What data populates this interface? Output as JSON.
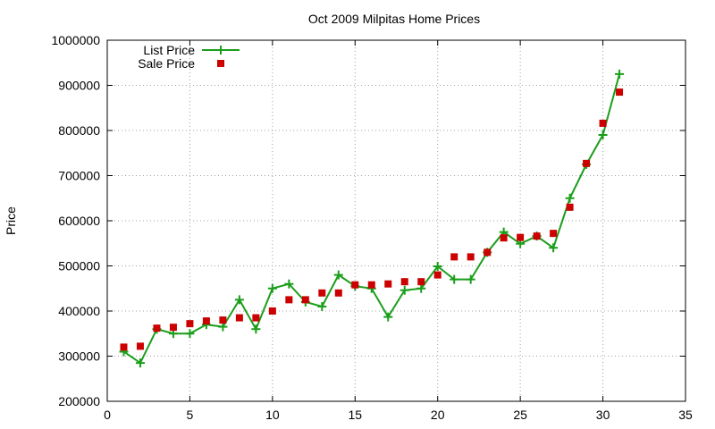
{
  "chart_data": {
    "type": "line",
    "title": "Oct 2009 Milpitas Home Prices",
    "xlabel": "",
    "ylabel": "Price",
    "xlim": [
      0,
      35
    ],
    "ylim": [
      200000,
      1000000
    ],
    "x_ticks": [
      0,
      5,
      10,
      15,
      20,
      25,
      30,
      35
    ],
    "y_ticks": [
      200000,
      300000,
      400000,
      500000,
      600000,
      700000,
      800000,
      900000,
      1000000
    ],
    "grid": true,
    "legend_position": "top-left",
    "series": [
      {
        "name": "List Price",
        "style": "line-with-plus-markers",
        "color": "#1a9e1a",
        "x": [
          1,
          2,
          3,
          4,
          5,
          6,
          7,
          8,
          9,
          10,
          11,
          12,
          13,
          14,
          15,
          16,
          17,
          18,
          19,
          20,
          21,
          22,
          23,
          24,
          25,
          26,
          27,
          28,
          29,
          30,
          31
        ],
        "values": [
          310000,
          285000,
          360000,
          350000,
          350000,
          370000,
          365000,
          425000,
          360000,
          450000,
          460000,
          420000,
          410000,
          480000,
          455000,
          450000,
          387000,
          446000,
          450000,
          499000,
          470000,
          470000,
          530000,
          575000,
          549000,
          566000,
          540000,
          650000,
          725000,
          790000,
          925000
        ]
      },
      {
        "name": "Sale Price",
        "style": "square-markers",
        "color": "#cc0000",
        "x": [
          1,
          2,
          3,
          4,
          5,
          6,
          7,
          8,
          9,
          10,
          11,
          12,
          13,
          14,
          15,
          16,
          17,
          18,
          19,
          20,
          21,
          22,
          23,
          24,
          25,
          26,
          27,
          28,
          29,
          30,
          31
        ],
        "values": [
          320000,
          322000,
          362000,
          364000,
          372000,
          378000,
          380000,
          385000,
          385000,
          400000,
          425000,
          425000,
          440000,
          440000,
          458000,
          458000,
          460000,
          465000,
          465000,
          480000,
          520000,
          520000,
          530000,
          562000,
          563000,
          566000,
          572000,
          630000,
          727000,
          816000,
          885000
        ]
      }
    ]
  }
}
